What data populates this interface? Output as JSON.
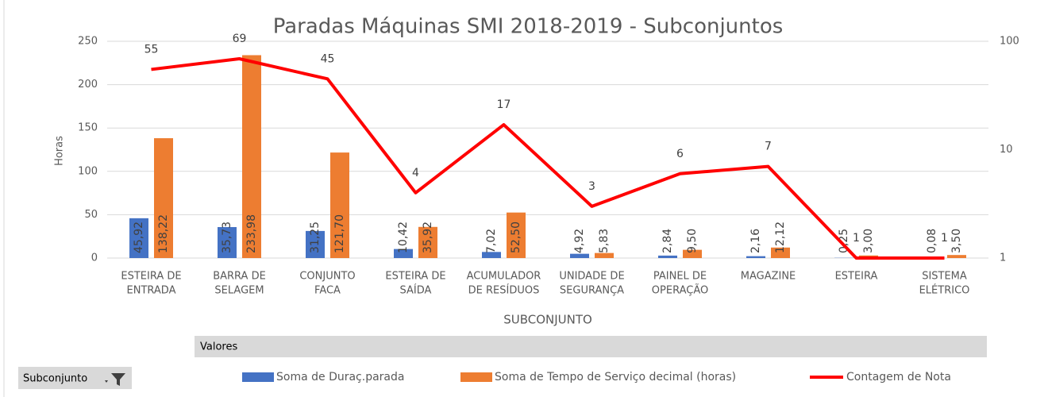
{
  "chart_data": {
    "type": "bar-line",
    "title": "Paradas Máquinas SMI 2018-2019 - Subconjuntos",
    "ylabel": "Horas",
    "xlabel": "SUBCONJUNTO",
    "field_values": "Valores",
    "filter_label": "Subconjunto",
    "categories": [
      [
        "ESTEIRA DE",
        "ENTRADA"
      ],
      [
        "BARRA DE",
        "SELAGEM"
      ],
      [
        "CONJUNTO",
        "FACA"
      ],
      [
        "ESTEIRA DE",
        "SAÍDA"
      ],
      [
        "ACUMULADOR",
        "DE RESÍDUOS"
      ],
      [
        "UNIDADE DE",
        "SEGURANÇA"
      ],
      [
        "PAINEL DE",
        "OPERAÇÃO"
      ],
      [
        "MAGAZINE"
      ],
      [
        "ESTEIRA"
      ],
      [
        "SISTEMA",
        "ELÉTRICO"
      ]
    ],
    "series": [
      {
        "name": "Soma de Duraç.parada",
        "color": "#4472c4",
        "kind": "bar",
        "values": [
          45.92,
          35.73,
          31.25,
          10.42,
          7.02,
          4.92,
          2.84,
          2.16,
          0.25,
          0.08
        ],
        "value_labels": [
          "45,92",
          "35,73",
          "31,25",
          "10,42",
          "7,02",
          "4,92",
          "2,84",
          "2,16",
          "0,25",
          "0,08"
        ]
      },
      {
        "name": "Soma de Tempo de Serviço decimal (horas)",
        "color": "#ed7d31",
        "kind": "bar",
        "values": [
          138.22,
          233.98,
          121.7,
          35.92,
          52.5,
          5.83,
          9.5,
          12.12,
          3.0,
          3.5
        ],
        "value_labels": [
          "138,22",
          "233,98",
          "121,70",
          "35,92",
          "52,50",
          "5,83",
          "9,50",
          "12,12",
          "3,00",
          "3,50"
        ]
      },
      {
        "name": "Contagem de Nota",
        "color": "#ff0000",
        "kind": "line",
        "axis": "y2",
        "values": [
          55,
          69,
          45,
          4,
          17,
          3,
          6,
          7,
          1,
          1
        ]
      }
    ],
    "ylim": [
      0,
      250
    ],
    "yticks": [
      0,
      50,
      100,
      150,
      200,
      250
    ],
    "y2lim": [
      1,
      100
    ],
    "y2ticks": [
      1,
      10,
      100
    ],
    "y2log": true,
    "grid": true
  }
}
